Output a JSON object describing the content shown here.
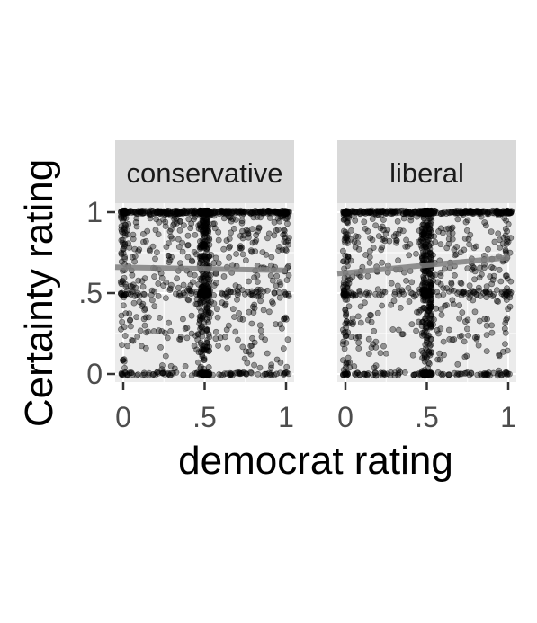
{
  "chart_data": {
    "type": "scatter",
    "xlabel": "democrat rating",
    "ylabel": "Certainty rating",
    "xlim": [
      0,
      1
    ],
    "ylim": [
      0,
      1
    ],
    "x_ticks": [
      "0",
      ".5",
      "1"
    ],
    "y_ticks": [
      "1",
      ".5",
      "0"
    ],
    "point_color": "#000000",
    "trend_color": "#7f7f7f",
    "panel_background": "#ebebeb",
    "strip_background": "#d9d9d9",
    "panels": [
      {
        "name": "conservative",
        "approx_points": 1400,
        "trend": {
          "x": [
            0,
            1
          ],
          "y": [
            0.66,
            0.64
          ]
        }
      },
      {
        "name": "liberal",
        "approx_points": 1400,
        "trend": {
          "x": [
            0,
            1
          ],
          "y": [
            0.62,
            0.72
          ]
        }
      }
    ]
  }
}
